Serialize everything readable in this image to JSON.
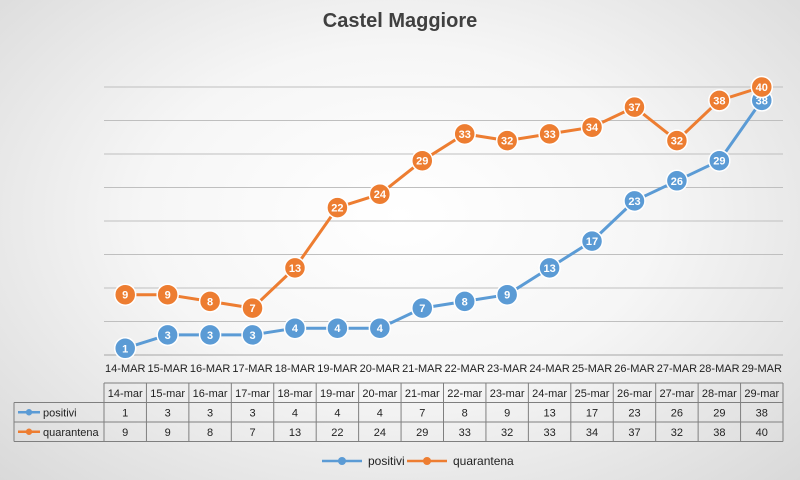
{
  "chart_data": {
    "type": "line",
    "title": "Castel Maggiore",
    "xlabel": "",
    "ylabel": "",
    "ylim": [
      0,
      40
    ],
    "grid": true,
    "legend_position": "bottom",
    "categories": [
      "14-MAR",
      "15-MAR",
      "16-MAR",
      "17-MAR",
      "18-MAR",
      "19-MAR",
      "20-MAR",
      "21-MAR",
      "22-MAR",
      "23-MAR",
      "24-MAR",
      "25-MAR",
      "26-MAR",
      "27-MAR",
      "28-MAR",
      "29-MAR"
    ],
    "table_categories": [
      "14-mar",
      "15-mar",
      "16-mar",
      "17-mar",
      "18-mar",
      "19-mar",
      "20-mar",
      "21-mar",
      "22-mar",
      "23-mar",
      "24-mar",
      "25-mar",
      "26-mar",
      "27-mar",
      "28-mar",
      "29-mar"
    ],
    "series": [
      {
        "name": "positivi",
        "color": "#5B9BD5",
        "values": [
          1,
          3,
          3,
          3,
          4,
          4,
          4,
          7,
          8,
          9,
          13,
          17,
          23,
          26,
          29,
          38
        ]
      },
      {
        "name": "quarantena",
        "color": "#ED7D31",
        "values": [
          9,
          9,
          8,
          7,
          13,
          22,
          24,
          29,
          33,
          32,
          33,
          34,
          37,
          32,
          38,
          40
        ]
      }
    ]
  }
}
